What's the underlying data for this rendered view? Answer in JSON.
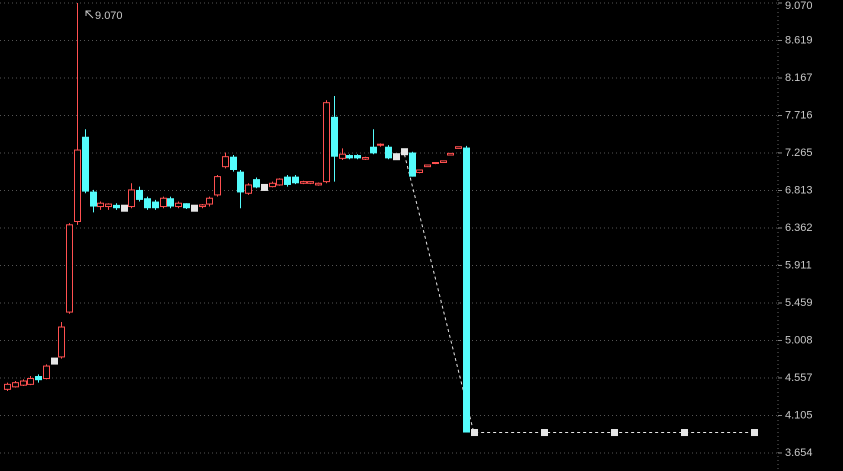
{
  "chart_data": {
    "type": "candlestick",
    "x": [
      0,
      1,
      2,
      3,
      4,
      5,
      6,
      7,
      8,
      9,
      10,
      11,
      12,
      13,
      14,
      15,
      16,
      17,
      18,
      19,
      20,
      21,
      22,
      23,
      24,
      25,
      26,
      27,
      28,
      29,
      30,
      31,
      32,
      33,
      34,
      35,
      36,
      37,
      38,
      39,
      40,
      41,
      42,
      43,
      44,
      45,
      46,
      47,
      48,
      49,
      50,
      51,
      52,
      53,
      54,
      55,
      56,
      57,
      58,
      59,
      60,
      69,
      78,
      87,
      96
    ],
    "open": [
      4.42,
      4.45,
      4.47,
      4.48,
      4.58,
      4.55,
      4.76,
      4.81,
      5.35,
      6.44,
      7.46,
      6.8,
      6.62,
      6.62,
      6.64,
      6.6,
      6.62,
      6.82,
      6.72,
      6.68,
      6.62,
      6.72,
      6.62,
      6.66,
      6.6,
      6.62,
      6.65,
      6.76,
      7.1,
      7.22,
      7.04,
      6.78,
      6.95,
      6.85,
      6.86,
      6.88,
      6.98,
      6.98,
      6.9,
      6.9,
      6.88,
      6.92,
      7.7,
      7.2,
      7.24,
      7.24,
      7.19,
      7.34,
      7.36,
      7.34,
      7.22,
      7.28,
      7.27,
      7.03,
      7.1,
      7.14,
      7.15,
      7.24,
      7.32,
      7.33,
      3.9,
      3.9,
      3.9,
      3.9,
      3.9
    ],
    "high": [
      4.5,
      4.52,
      4.54,
      4.58,
      4.6,
      4.72,
      4.78,
      5.23,
      6.42,
      9.07,
      7.55,
      6.82,
      6.68,
      6.66,
      6.66,
      6.62,
      6.9,
      6.86,
      6.74,
      6.7,
      6.74,
      6.74,
      6.68,
      6.66,
      6.61,
      6.65,
      6.74,
      7.0,
      7.27,
      7.24,
      7.06,
      6.9,
      6.97,
      6.86,
      6.92,
      6.96,
      7.0,
      7.0,
      6.93,
      6.92,
      6.91,
      7.9,
      7.95,
      7.32,
      7.25,
      7.25,
      7.22,
      7.55,
      7.38,
      7.36,
      7.22,
      7.28,
      7.28,
      7.06,
      7.12,
      7.15,
      7.17,
      7.26,
      7.34,
      7.35,
      3.9,
      3.9,
      3.9,
      3.9,
      3.9
    ],
    "low": [
      4.4,
      4.44,
      4.46,
      4.47,
      4.5,
      4.54,
      4.74,
      4.79,
      5.33,
      6.4,
      6.78,
      6.55,
      6.58,
      6.58,
      6.58,
      6.58,
      6.6,
      6.68,
      6.58,
      6.58,
      6.6,
      6.6,
      6.6,
      6.59,
      6.59,
      6.6,
      6.62,
      6.74,
      7.08,
      7.04,
      6.6,
      6.76,
      6.84,
      6.84,
      6.85,
      6.87,
      6.86,
      6.89,
      6.89,
      6.89,
      6.87,
      6.9,
      6.92,
      7.18,
      7.19,
      7.19,
      7.18,
      7.25,
      7.34,
      7.19,
      7.22,
      7.28,
      6.98,
      7.02,
      7.1,
      7.13,
      7.15,
      7.24,
      7.32,
      3.9,
      3.9,
      3.9,
      3.9,
      3.9,
      3.9
    ],
    "close": [
      4.48,
      4.5,
      4.52,
      4.55,
      4.53,
      4.7,
      4.76,
      5.17,
      6.4,
      7.3,
      6.8,
      6.62,
      6.66,
      6.65,
      6.6,
      6.6,
      6.82,
      6.7,
      6.6,
      6.6,
      6.72,
      6.62,
      6.66,
      6.6,
      6.6,
      6.64,
      6.72,
      6.98,
      7.22,
      7.06,
      6.79,
      6.88,
      6.85,
      6.85,
      6.9,
      6.95,
      6.88,
      6.9,
      6.92,
      6.92,
      6.9,
      7.87,
      7.22,
      7.25,
      7.2,
      7.2,
      7.21,
      7.26,
      7.37,
      7.2,
      7.22,
      7.28,
      6.98,
      7.06,
      7.12,
      7.15,
      7.17,
      7.26,
      7.34,
      3.9,
      3.9,
      3.9,
      3.9,
      3.9,
      3.9
    ],
    "up_color": "#ff5050",
    "down_color": "#54fcfc",
    "flat_color": "#e6e6e6",
    "xlim": [
      -0.9,
      99.1
    ],
    "ylim": [
      3.437,
      9.106
    ],
    "yticks": [
      3.654,
      4.105,
      4.557,
      5.008,
      5.459,
      5.911,
      6.362,
      6.813,
      7.265,
      7.716,
      8.167,
      8.619,
      {
        "value": 9.07,
        "label": "9.070"
      }
    ],
    "grid": true,
    "max_label": {
      "value": 9.07,
      "label": "9.070"
    }
  }
}
